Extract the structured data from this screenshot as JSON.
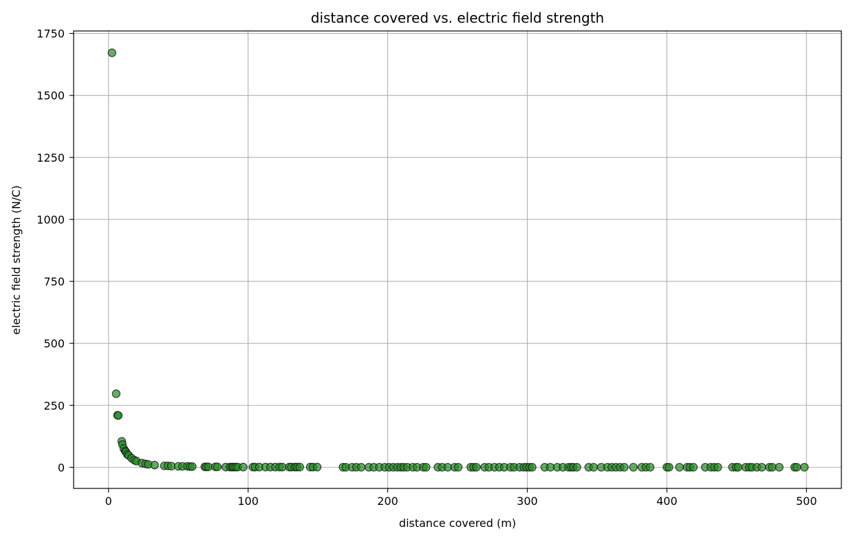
{
  "chart_data": {
    "type": "scatter",
    "title": "distance covered vs. electric field strength",
    "xlabel": "distance covered (m)",
    "ylabel": "electric field strength (N/C)",
    "xlim": [
      -25,
      525
    ],
    "ylim": [
      -85,
      1760
    ],
    "xticks": [
      0,
      100,
      200,
      300,
      400,
      500
    ],
    "yticks": [
      0,
      250,
      500,
      750,
      1000,
      1250,
      1500,
      1750
    ],
    "grid": true,
    "legend": "none",
    "colors": {
      "marker_fill": "#228b22",
      "marker_edge": "#1a1a1a",
      "marker_alpha": 0.7,
      "grid": "#b0b0b0",
      "axes": "#000000"
    },
    "series": [
      {
        "points": [
          [
            2.5,
            1672
          ],
          [
            5.5,
            297
          ],
          [
            6.5,
            210
          ],
          [
            7.0,
            209
          ],
          [
            9.5,
            105
          ],
          [
            10.0,
            92
          ],
          [
            11.0,
            75
          ],
          [
            12.0,
            66
          ],
          [
            12.5,
            62
          ],
          [
            13.5,
            52
          ],
          [
            14.5,
            48
          ],
          [
            16.5,
            37
          ],
          [
            18.5,
            29
          ],
          [
            20.0,
            25
          ],
          [
            24.0,
            17
          ],
          [
            26.5,
            14
          ],
          [
            28.5,
            12
          ],
          [
            33.0,
            9
          ],
          [
            40.0,
            6
          ],
          [
            42.5,
            6
          ],
          [
            45.0,
            5
          ],
          [
            50.0,
            4
          ],
          [
            53.0,
            4
          ],
          [
            56.5,
            4
          ],
          [
            58.5,
            3
          ],
          [
            60.0,
            3
          ],
          [
            69.0,
            2
          ],
          [
            70.0,
            2
          ],
          [
            71.5,
            2
          ],
          [
            76.5,
            2
          ],
          [
            78.0,
            2
          ],
          [
            84.0,
            1
          ],
          [
            87.0,
            1
          ],
          [
            88.5,
            1
          ],
          [
            89.5,
            1
          ],
          [
            91.0,
            1
          ],
          [
            92.5,
            1
          ],
          [
            96.5,
            1
          ],
          [
            103.5,
            1
          ],
          [
            105.0,
            1
          ],
          [
            108.0,
            1
          ],
          [
            112.5,
            1
          ],
          [
            116.0,
            1
          ],
          [
            119.5,
            1
          ],
          [
            122.5,
            1
          ],
          [
            124.5,
            1
          ],
          [
            129.5,
            1
          ],
          [
            131.0,
            1
          ],
          [
            133.5,
            1
          ],
          [
            135.0,
            1
          ],
          [
            137.0,
            1
          ],
          [
            144.5,
            1
          ],
          [
            146.5,
            1
          ],
          [
            149.5,
            1
          ],
          [
            168.0,
            0.5
          ],
          [
            170.0,
            0.5
          ],
          [
            174.5,
            0.5
          ],
          [
            177.5,
            0.5
          ],
          [
            181.0,
            0.5
          ],
          [
            186.5,
            0.5
          ],
          [
            190.0,
            0.5
          ],
          [
            194.0,
            0.5
          ],
          [
            198.0,
            0.5
          ],
          [
            201.0,
            0.5
          ],
          [
            204.0,
            0.5
          ],
          [
            207.0,
            0.5
          ],
          [
            209.5,
            0.5
          ],
          [
            211.5,
            0.5
          ],
          [
            214.0,
            0.5
          ],
          [
            218.0,
            0.5
          ],
          [
            221.0,
            0.5
          ],
          [
            225.5,
            0.5
          ],
          [
            227.5,
            0.5
          ],
          [
            236.0,
            0.5
          ],
          [
            239.0,
            0.5
          ],
          [
            243.0,
            0.5
          ],
          [
            248.0,
            0.5
          ],
          [
            250.5,
            0.5
          ],
          [
            259.5,
            0.5
          ],
          [
            261.5,
            0.5
          ],
          [
            263.5,
            0.5
          ],
          [
            269.5,
            0.5
          ],
          [
            272.5,
            0.5
          ],
          [
            276.5,
            0.5
          ],
          [
            280.0,
            0.5
          ],
          [
            283.5,
            0.5
          ],
          [
            288.0,
            0.5
          ],
          [
            290.5,
            0.5
          ],
          [
            294.5,
            0.5
          ],
          [
            297.5,
            0.5
          ],
          [
            299.5,
            0.5
          ],
          [
            301.5,
            0.5
          ],
          [
            303.5,
            0.5
          ],
          [
            312.5,
            0.5
          ],
          [
            316.5,
            0.5
          ],
          [
            321.5,
            0.5
          ],
          [
            325.5,
            0.5
          ],
          [
            329.5,
            0.5
          ],
          [
            331.5,
            0.5
          ],
          [
            333.0,
            0.5
          ],
          [
            335.5,
            0.5
          ],
          [
            344.0,
            0.5
          ],
          [
            347.5,
            0.5
          ],
          [
            353.0,
            0.5
          ],
          [
            357.5,
            0.5
          ],
          [
            360.5,
            0.5
          ],
          [
            363.5,
            0.5
          ],
          [
            366.5,
            0.5
          ],
          [
            369.5,
            0.5
          ],
          [
            376.0,
            0.5
          ],
          [
            382.0,
            0.5
          ],
          [
            385.0,
            0.5
          ],
          [
            388.0,
            0.5
          ],
          [
            400.0,
            0.5
          ],
          [
            401.5,
            0.5
          ],
          [
            409.0,
            0.5
          ],
          [
            414.5,
            0.5
          ],
          [
            416.5,
            0.5
          ],
          [
            419.0,
            0.5
          ],
          [
            427.5,
            0.5
          ],
          [
            431.5,
            0.5
          ],
          [
            434.0,
            0.5
          ],
          [
            436.5,
            0.5
          ],
          [
            447.0,
            0.5
          ],
          [
            449.5,
            0.5
          ],
          [
            451.0,
            0.5
          ],
          [
            456.5,
            0.5
          ],
          [
            459.0,
            0.5
          ],
          [
            461.0,
            0.5
          ],
          [
            464.5,
            0.5
          ],
          [
            468.0,
            0.5
          ],
          [
            473.5,
            0.5
          ],
          [
            475.5,
            0.5
          ],
          [
            480.5,
            0.5
          ],
          [
            491.5,
            0.5
          ],
          [
            493.0,
            0.5
          ],
          [
            498.5,
            0.5
          ]
        ]
      }
    ]
  }
}
